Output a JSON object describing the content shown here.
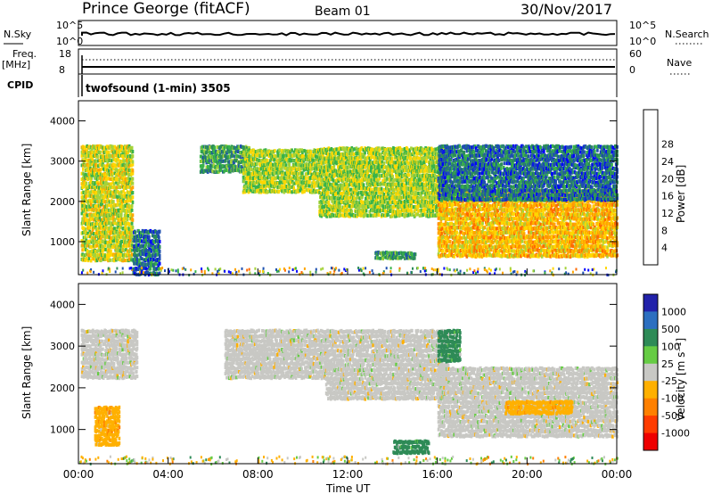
{
  "header": {
    "station": "Prince George (fitACF)",
    "beam": "Beam 01",
    "date": "30/Nov/2017"
  },
  "top_panels": {
    "nsky_label": "N.Sky",
    "nsky_ticks": [
      "10^5",
      "10^0"
    ],
    "nsearch_label": "N.Search",
    "nsearch_ticks": [
      "10^5",
      "10^0"
    ],
    "freq_label": "Freq.",
    "freq_unit": "[MHz]",
    "freq_ticks": [
      "18",
      "8"
    ],
    "nave_label": "Nave",
    "nave_ticks": [
      "60",
      "0"
    ],
    "cpid_label": "CPID",
    "cpid_value": "twofsound (1-min) 3505"
  },
  "colorbars": {
    "power": {
      "label": "Power [dB]",
      "ticks": [
        "4",
        "8",
        "12",
        "16",
        "20",
        "24",
        "28"
      ],
      "colors": [
        "#0000ff",
        "#1f4fb0",
        "#2c8c5a",
        "#39b34a",
        "#a5d33a",
        "#ffd700",
        "#ffa500",
        "#ff6a00",
        "#ff0000"
      ]
    },
    "velocity": {
      "label": "Velocity [m s⁻¹]",
      "ticks": [
        "1000",
        "500",
        "100",
        "25",
        "-25",
        "-100",
        "-500",
        "-1000"
      ],
      "colors": [
        "#2222aa",
        "#2c6fc0",
        "#2e8b57",
        "#66cc44",
        "#c8c8c4",
        "#ffb000",
        "#ff8000",
        "#ff3c00",
        "#ee0000"
      ]
    }
  },
  "axes": {
    "ylabel": "Slant Range [km]",
    "xlabel": "Time UT",
    "yticks": [
      "1000",
      "2000",
      "3000",
      "4000"
    ],
    "xticks": [
      "00:00",
      "04:00",
      "08:00",
      "12:00",
      "16:00",
      "20:00",
      "00:00"
    ]
  },
  "chart_data": [
    {
      "type": "heatmap",
      "panel": "power",
      "x_unit": "hours UT",
      "x_range": [
        0,
        24
      ],
      "y_range_km": [
        180,
        4500
      ],
      "features": [
        {
          "t": [
            0.1,
            2.4
          ],
          "range_km": [
            600,
            3500
          ],
          "power_dB": 20
        },
        {
          "t": [
            2.4,
            3.6
          ],
          "range_km": [
            250,
            1400
          ],
          "power_dB": 8
        },
        {
          "t": [
            5.4,
            7.6
          ],
          "range_km": [
            2800,
            3500
          ],
          "power_dB": 12
        },
        {
          "t": [
            7.3,
            10.7
          ],
          "range_km": [
            2300,
            3400
          ],
          "power_dB": 18
        },
        {
          "t": [
            10.7,
            16.4
          ],
          "range_km": [
            1700,
            3450
          ],
          "power_dB": 18
        },
        {
          "t": [
            13.2,
            15.0
          ],
          "range_km": [
            650,
            850
          ],
          "power_dB": 12
        },
        {
          "t": [
            16.0,
            24.0
          ],
          "range_km": [
            700,
            2400
          ],
          "power_dB": 24
        },
        {
          "t": [
            16.0,
            24.0
          ],
          "range_km": [
            2100,
            3500
          ],
          "power_dB": 8
        }
      ]
    },
    {
      "type": "heatmap",
      "panel": "velocity",
      "x_unit": "hours UT",
      "x_range": [
        0,
        24
      ],
      "y_range_km": [
        180,
        4500
      ],
      "features": [
        {
          "t": [
            0.1,
            2.6
          ],
          "range_km": [
            2300,
            3500
          ],
          "velocity_ms": 0
        },
        {
          "t": [
            0.7,
            1.8
          ],
          "range_km": [
            700,
            1650
          ],
          "velocity_ms": -100
        },
        {
          "t": [
            6.5,
            11.0
          ],
          "range_km": [
            2300,
            3500
          ],
          "velocity_ms": 0
        },
        {
          "t": [
            11.0,
            16.5
          ],
          "range_km": [
            1800,
            3500
          ],
          "velocity_ms": 0
        },
        {
          "t": [
            14.0,
            15.6
          ],
          "range_km": [
            500,
            850
          ],
          "velocity_ms": 100
        },
        {
          "t": [
            16.0,
            24.0
          ],
          "range_km": [
            900,
            2600
          ],
          "velocity_ms": 0
        },
        {
          "t": [
            19.0,
            22.0
          ],
          "range_km": [
            1450,
            1800
          ],
          "velocity_ms": -100
        },
        {
          "t": [
            16.0,
            17.0
          ],
          "range_km": [
            2700,
            3500
          ],
          "velocity_ms": 100
        }
      ]
    }
  ]
}
